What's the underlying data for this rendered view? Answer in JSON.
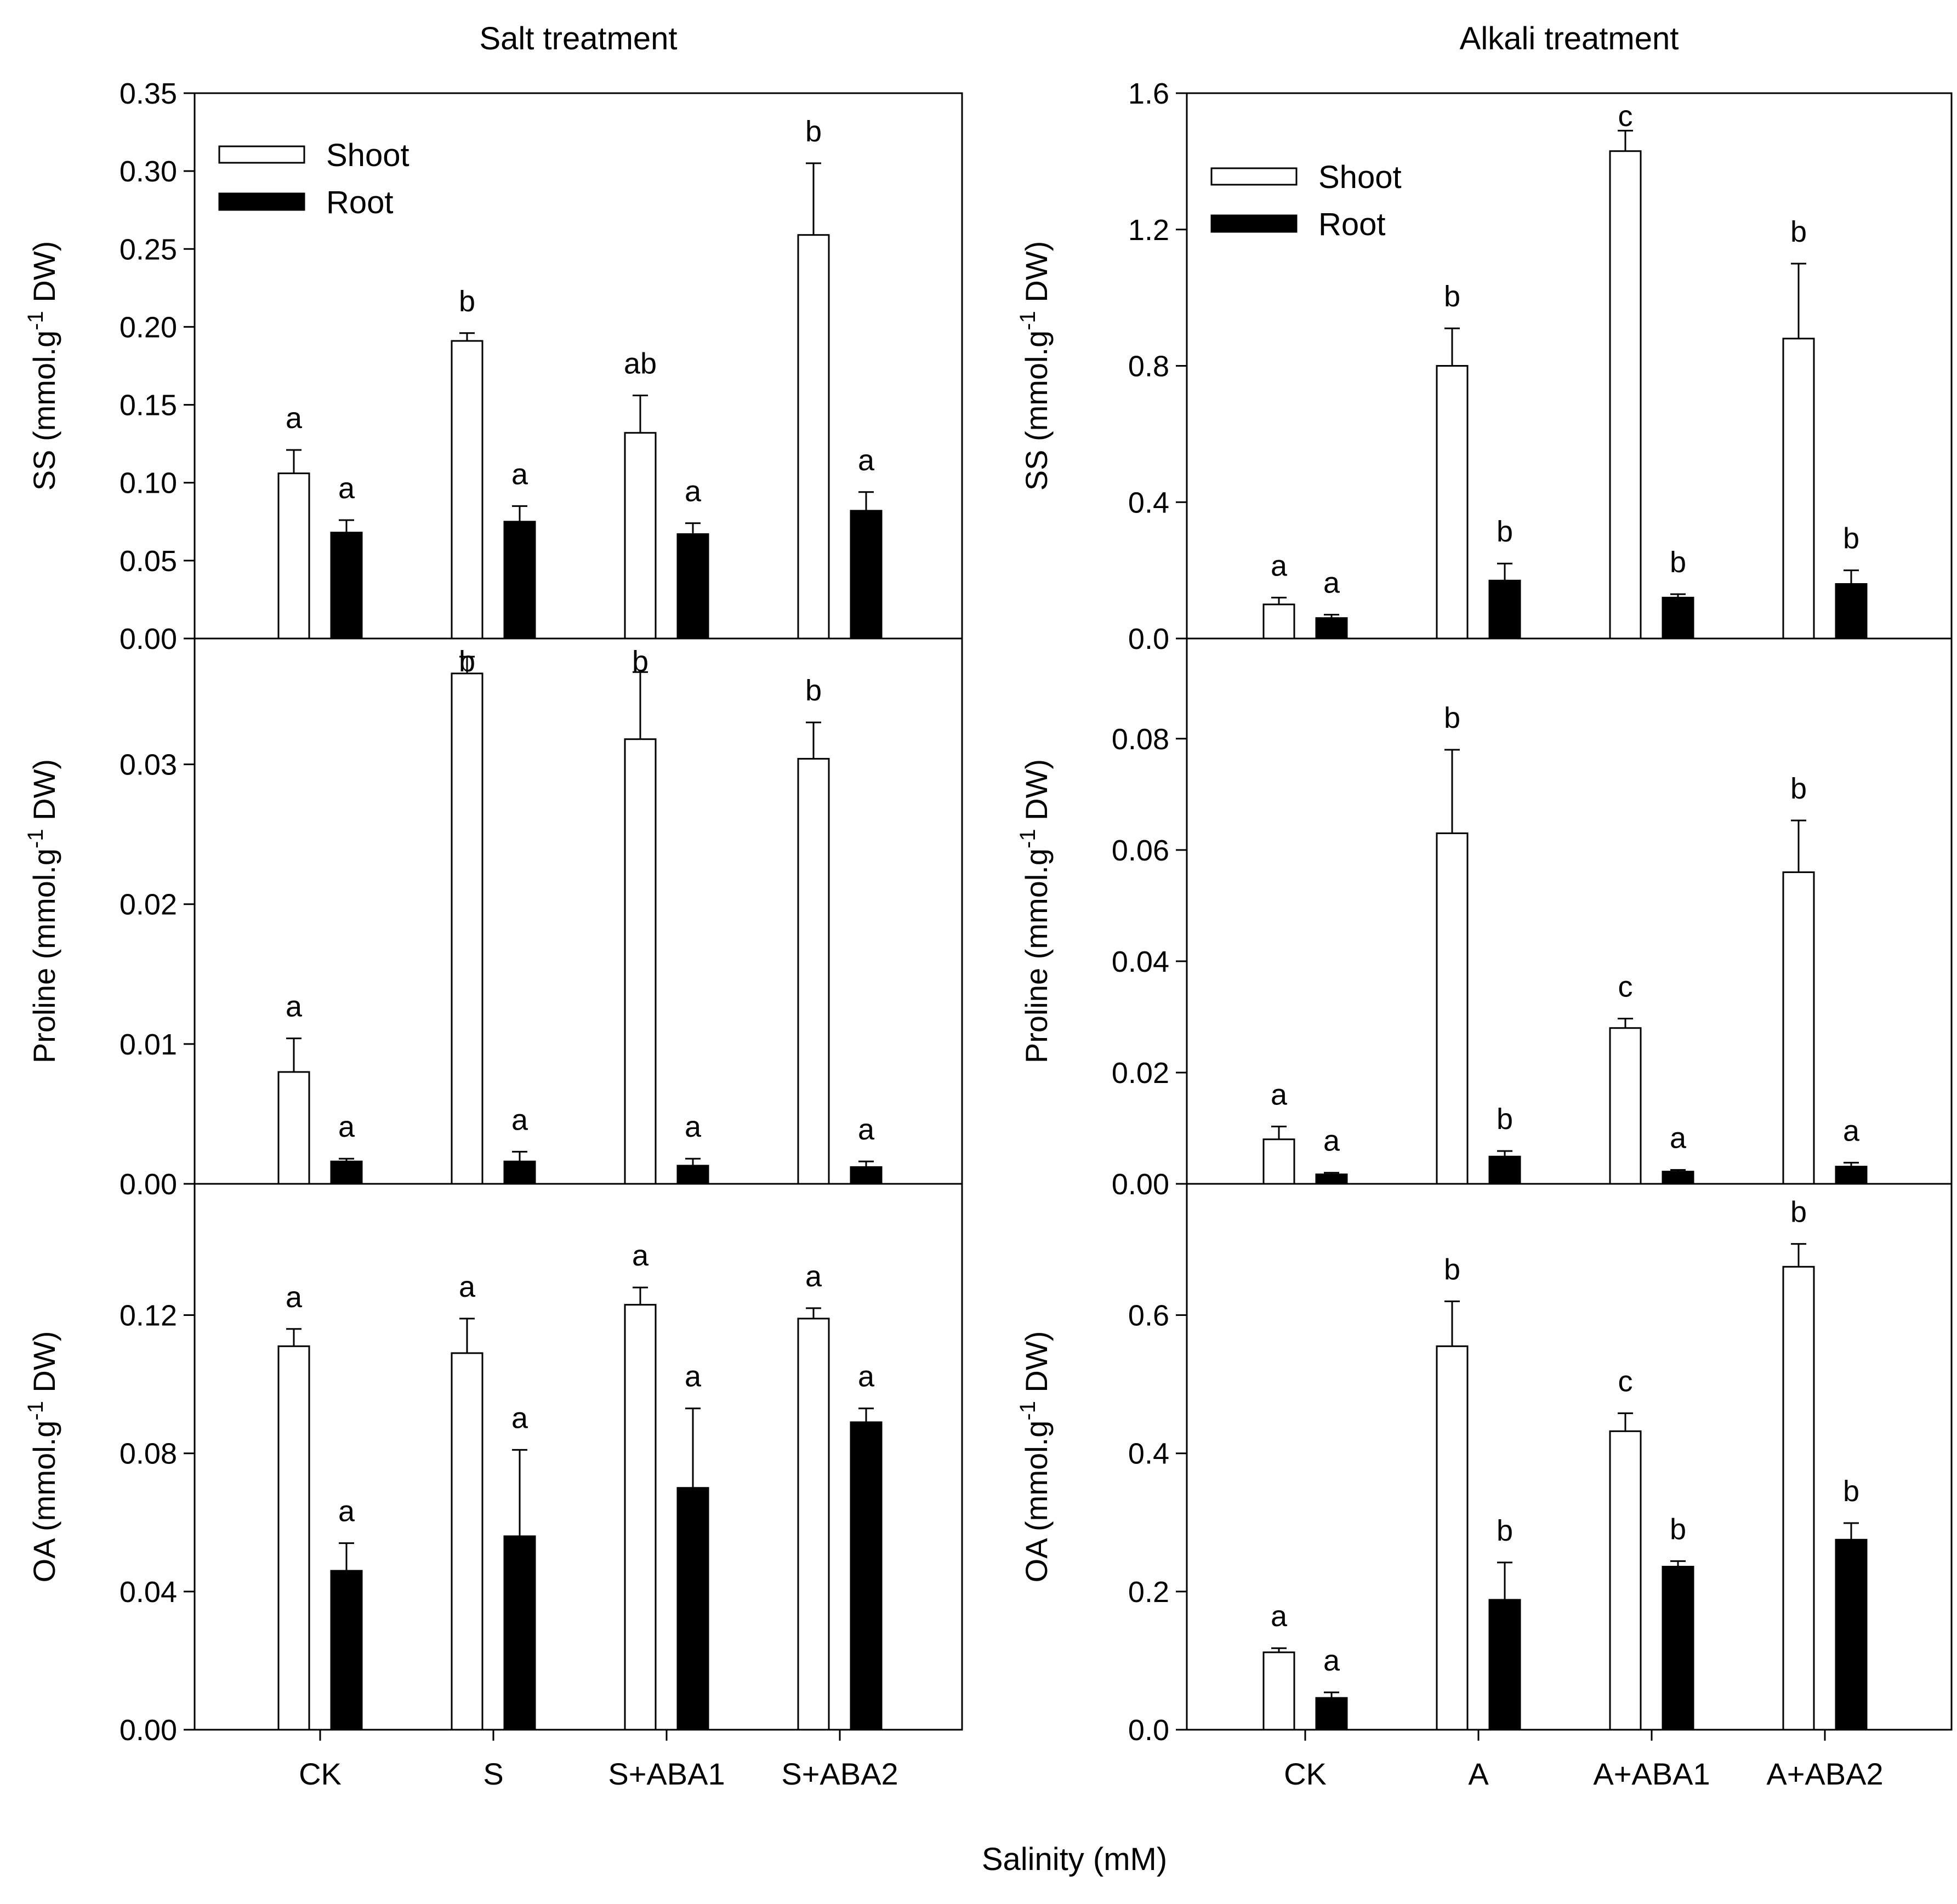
{
  "figure": {
    "xlabel": "Salinity (mM)",
    "legend": {
      "series": [
        "Shoot",
        "Root"
      ],
      "placement": "top-left"
    }
  },
  "chart_data": [
    {
      "type": "bar",
      "id": "salt-ss",
      "title": "Salt treatment",
      "ylabel_pre": "SS (mmol.g",
      "ylabel_sup": "-1",
      "ylabel_post": " DW)",
      "ylim": [
        0,
        0.35
      ],
      "yticks": [
        0,
        0.05,
        0.1,
        0.15,
        0.2,
        0.25,
        0.3,
        0.35
      ],
      "ytick_labels": [
        "0.00",
        "0.05",
        "0.10",
        "0.15",
        "0.20",
        "0.25",
        "0.30",
        "0.35"
      ],
      "categories": [
        "CK",
        "S",
        "S+ABA1",
        "S+ABA2"
      ],
      "series": [
        {
          "name": "Shoot",
          "values": [
            0.106,
            0.191,
            0.132,
            0.259
          ],
          "errors": [
            0.015,
            0.005,
            0.024,
            0.046
          ],
          "labels": [
            "a",
            "b",
            "ab",
            "b"
          ]
        },
        {
          "name": "Root",
          "values": [
            0.068,
            0.075,
            0.067,
            0.082
          ],
          "errors": [
            0.008,
            0.01,
            0.007,
            0.012
          ],
          "labels": [
            "a",
            "a",
            "a",
            "a"
          ]
        }
      ]
    },
    {
      "type": "bar",
      "id": "alkali-ss",
      "title": "Alkali treatment",
      "ylabel_pre": "SS (mmol.g",
      "ylabel_sup": "-1",
      "ylabel_post": " DW)",
      "ylim": [
        0,
        1.6
      ],
      "yticks": [
        0,
        0.4,
        0.8,
        1.2,
        1.6
      ],
      "ytick_labels": [
        "0.0",
        "0.4",
        "0.8",
        "1.2",
        "1.6"
      ],
      "categories": [
        "CK",
        "A",
        "A+ABA1",
        "A+ABA2"
      ],
      "series": [
        {
          "name": "Shoot",
          "values": [
            0.1,
            0.8,
            1.43,
            0.88
          ],
          "errors": [
            0.02,
            0.11,
            0.06,
            0.22
          ],
          "labels": [
            "a",
            "b",
            "c",
            "b"
          ]
        },
        {
          "name": "Root",
          "values": [
            0.06,
            0.17,
            0.12,
            0.16
          ],
          "errors": [
            0.01,
            0.05,
            0.01,
            0.04
          ],
          "labels": [
            "a",
            "b",
            "b",
            "b"
          ]
        }
      ]
    },
    {
      "type": "bar",
      "id": "salt-proline",
      "ylabel_pre": "Proline (mmol.g",
      "ylabel_sup": "-1",
      "ylabel_post": " DW)",
      "ylim": [
        0,
        0.039
      ],
      "yticks": [
        0,
        0.01,
        0.02,
        0.03
      ],
      "ytick_labels": [
        "0.00",
        "0.01",
        "0.02",
        "0.03"
      ],
      "categories": [
        "CK",
        "S",
        "S+ABA1",
        "S+ABA2"
      ],
      "series": [
        {
          "name": "Shoot",
          "values": [
            0.008,
            0.0365,
            0.0318,
            0.0304
          ],
          "errors": [
            0.0024,
            0.0012,
            0.0048,
            0.0026
          ],
          "labels": [
            "a",
            "b",
            "b",
            "b"
          ]
        },
        {
          "name": "Root",
          "values": [
            0.0016,
            0.0016,
            0.0013,
            0.0012
          ],
          "errors": [
            0.0002,
            0.0007,
            0.0005,
            0.0004
          ],
          "labels": [
            "a",
            "a",
            "a",
            "a"
          ]
        }
      ]
    },
    {
      "type": "bar",
      "id": "alkali-proline",
      "ylabel_pre": "Proline (mmol.g",
      "ylabel_sup": "-1",
      "ylabel_post": " DW)",
      "ylim": [
        0,
        0.098
      ],
      "yticks": [
        0,
        0.02,
        0.04,
        0.06,
        0.08
      ],
      "ytick_labels": [
        "0.00",
        "0.02",
        "0.04",
        "0.06",
        "0.08"
      ],
      "categories": [
        "CK",
        "A",
        "A+ABA1",
        "A+ABA2"
      ],
      "series": [
        {
          "name": "Shoot",
          "values": [
            0.008,
            0.063,
            0.028,
            0.056
          ],
          "errors": [
            0.0023,
            0.015,
            0.0017,
            0.0093
          ],
          "labels": [
            "a",
            "b",
            "c",
            "b"
          ]
        },
        {
          "name": "Root",
          "values": [
            0.0017,
            0.0049,
            0.0022,
            0.0031
          ],
          "errors": [
            0.0003,
            0.001,
            0.0003,
            0.0007
          ],
          "labels": [
            "a",
            "b",
            "a",
            "a"
          ]
        }
      ]
    },
    {
      "type": "bar",
      "id": "salt-oa",
      "ylabel_pre": "OA (mmol.g",
      "ylabel_sup": "-1",
      "ylabel_post": " DW)",
      "ylim": [
        0,
        0.158
      ],
      "yticks": [
        0,
        0.04,
        0.08,
        0.12
      ],
      "ytick_labels": [
        "0.00",
        "0.04",
        "0.08",
        "0.12"
      ],
      "categories": [
        "CK",
        "S",
        "S+ABA1",
        "S+ABA2"
      ],
      "series": [
        {
          "name": "Shoot",
          "values": [
            0.111,
            0.109,
            0.123,
            0.119
          ],
          "errors": [
            0.005,
            0.01,
            0.005,
            0.003
          ],
          "labels": [
            "a",
            "a",
            "a",
            "a"
          ]
        },
        {
          "name": "Root",
          "values": [
            0.046,
            0.056,
            0.07,
            0.089
          ],
          "errors": [
            0.008,
            0.025,
            0.023,
            0.004
          ],
          "labels": [
            "a",
            "a",
            "a",
            "a"
          ]
        }
      ]
    },
    {
      "type": "bar",
      "id": "alkali-oa",
      "ylabel_pre": "OA (mmol.g",
      "ylabel_sup": "-1",
      "ylabel_post": " DW)",
      "ylim": [
        0,
        0.79
      ],
      "yticks": [
        0,
        0.2,
        0.4,
        0.6
      ],
      "ytick_labels": [
        "0.0",
        "0.2",
        "0.4",
        "0.6"
      ],
      "categories": [
        "CK",
        "A",
        "A+ABA1",
        "A+ABA2"
      ],
      "series": [
        {
          "name": "Shoot",
          "values": [
            0.112,
            0.555,
            0.432,
            0.67
          ],
          "errors": [
            0.006,
            0.065,
            0.026,
            0.033
          ],
          "labels": [
            "a",
            "b",
            "c",
            "b"
          ]
        },
        {
          "name": "Root",
          "values": [
            0.046,
            0.188,
            0.236,
            0.275
          ],
          "errors": [
            0.008,
            0.054,
            0.008,
            0.024
          ],
          "labels": [
            "a",
            "b",
            "b",
            "b"
          ]
        }
      ]
    }
  ]
}
